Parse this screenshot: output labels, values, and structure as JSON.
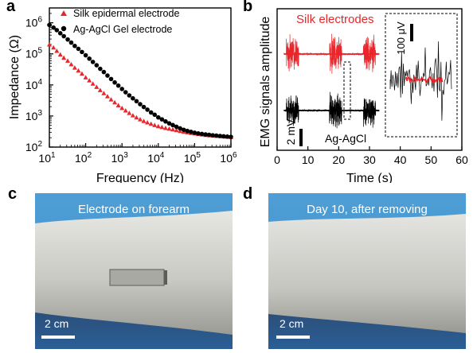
{
  "figure": {
    "panels": {
      "a": {
        "letter": "a"
      },
      "b": {
        "letter": "b"
      },
      "c": {
        "letter": "c",
        "caption": "Electrode on forearm",
        "scale": "2 cm"
      },
      "d": {
        "letter": "d",
        "caption": "Day 10, after removing",
        "scale": "2 cm"
      }
    }
  },
  "chart_data": [
    {
      "type": "scatter",
      "xlabel": "Frequency (Hz)",
      "ylabel": "Impedance (Ω)",
      "xscale": "log",
      "yscale": "log",
      "xlim": [
        10,
        1000000
      ],
      "ylim": [
        100,
        3000000
      ],
      "xticks": [
        {
          "v": 10,
          "b": "10",
          "e": "1"
        },
        {
          "v": 100,
          "b": "10",
          "e": "2"
        },
        {
          "v": 1000,
          "b": "10",
          "e": "3"
        },
        {
          "v": 10000,
          "b": "10",
          "e": "4"
        },
        {
          "v": 100000,
          "b": "10",
          "e": "5"
        },
        {
          "v": 1000000,
          "b": "10",
          "e": "6"
        }
      ],
      "yticks": [
        {
          "v": 100,
          "b": "10",
          "e": "2"
        },
        {
          "v": 1000,
          "b": "10",
          "e": "3"
        },
        {
          "v": 10000,
          "b": "10",
          "e": "4"
        },
        {
          "v": 100000,
          "b": "10",
          "e": "5"
        },
        {
          "v": 1000000,
          "b": "10",
          "e": "6"
        }
      ],
      "legend_position": "top-left",
      "series": [
        {
          "name": "Silk epidermal electrode",
          "marker": "triangle",
          "color": "#e8262b",
          "points": [
            [
              10,
              200000.0
            ],
            [
              13,
              160000.0
            ],
            [
              16,
              125000.0
            ],
            [
              20,
              95000.0
            ],
            [
              25,
              75000.0
            ],
            [
              32,
              60000.0
            ],
            [
              40,
              46000.0
            ],
            [
              50,
              36000.0
            ],
            [
              63,
              29000.0
            ],
            [
              79,
              23000.0
            ],
            [
              100,
              17500.0
            ],
            [
              126,
              14000.0
            ],
            [
              158,
              11000.0
            ],
            [
              200,
              8600.0
            ],
            [
              251,
              6800.0
            ],
            [
              316,
              5400.0
            ],
            [
              398,
              4300.0
            ],
            [
              501,
              3400.0
            ],
            [
              631,
              2750.0
            ],
            [
              794,
              2200.0
            ],
            [
              1000,
              1800.0
            ],
            [
              1259,
              1500.0
            ],
            [
              1585,
              1250.0
            ],
            [
              1995,
              1050.0
            ],
            [
              2512,
              900
            ],
            [
              3162,
              780
            ],
            [
              3981,
              690
            ],
            [
              5012,
              620
            ],
            [
              6310,
              560
            ],
            [
              7943,
              510
            ],
            [
              10000,
              470
            ],
            [
              12589,
              440
            ],
            [
              15849,
              410
            ],
            [
              19953,
              390
            ],
            [
              25119,
              370
            ],
            [
              31623,
              350
            ],
            [
              39811,
              330
            ],
            [
              50119,
              310
            ],
            [
              63096,
              300
            ],
            [
              79433,
              285
            ],
            [
              100000,
              275
            ],
            [
              125893,
              265
            ],
            [
              158489,
              255
            ],
            [
              199526,
              245
            ],
            [
              251189,
              240
            ],
            [
              316228,
              235
            ],
            [
              398107,
              230
            ],
            [
              501187,
              225
            ],
            [
              630957,
              220
            ],
            [
              794328,
              215
            ],
            [
              1000000,
              210
            ]
          ]
        },
        {
          "name": "Ag-AgCl Gel electrode",
          "marker": "circle",
          "color": "#000000",
          "points": [
            [
              10,
              850000.0
            ],
            [
              13,
              700000.0
            ],
            [
              16,
              580000.0
            ],
            [
              20,
              460000.0
            ],
            [
              25,
              370000.0
            ],
            [
              32,
              290000.0
            ],
            [
              40,
              230000.0
            ],
            [
              50,
              180000.0
            ],
            [
              63,
              145000.0
            ],
            [
              79,
              115000.0
            ],
            [
              100,
              90000.0
            ],
            [
              126,
              70000.0
            ],
            [
              158,
              55000.0
            ],
            [
              200,
              43000.0
            ],
            [
              251,
              33000.0
            ],
            [
              316,
              26000.0
            ],
            [
              398,
              20000.0
            ],
            [
              501,
              15500.0
            ],
            [
              631,
              12000.0
            ],
            [
              794,
              9500.0
            ],
            [
              1000,
              7400.0
            ],
            [
              1259,
              5800.0
            ],
            [
              1585,
              4600.0
            ],
            [
              1995,
              3700.0
            ],
            [
              2512,
              3000.0
            ],
            [
              3162,
              2400.0
            ],
            [
              3981,
              1950.0
            ],
            [
              5012,
              1600.0
            ],
            [
              6310,
              1300.0
            ],
            [
              7943,
              1100.0
            ],
            [
              10000,
              900
            ],
            [
              12589,
              780
            ],
            [
              15849,
              670
            ],
            [
              19953,
              580
            ],
            [
              25119,
              510
            ],
            [
              31623,
              450
            ],
            [
              39811,
              400
            ],
            [
              50119,
              360
            ],
            [
              63096,
              330
            ],
            [
              79433,
              310
            ],
            [
              100000,
              290
            ],
            [
              125893,
              275
            ],
            [
              158489,
              265
            ],
            [
              199526,
              255
            ],
            [
              251189,
              248
            ],
            [
              316228,
              240
            ],
            [
              398107,
              234
            ],
            [
              501187,
              228
            ],
            [
              630957,
              222
            ],
            [
              794328,
              217
            ],
            [
              1000000,
              213
            ]
          ]
        }
      ]
    },
    {
      "type": "line",
      "xlabel": "Time (s)",
      "ylabel": "EMG signals amplitude",
      "xlim": [
        0,
        60
      ],
      "xticks": [
        0,
        10,
        20,
        30,
        40,
        50,
        60
      ],
      "series": [
        {
          "name": "Silk electrodes",
          "color": "#e8262b",
          "bursts": [
            [
              3,
              7
            ],
            [
              17,
              21
            ],
            [
              28,
              32
            ]
          ]
        },
        {
          "name": "Ag-AgCl",
          "color": "#000000",
          "bursts": [
            [
              3,
              7
            ],
            [
              17,
              21
            ],
            [
              28,
              32
            ]
          ]
        }
      ],
      "scale_bar": "2 mV",
      "inset_scale_bar": "100 μV"
    }
  ]
}
